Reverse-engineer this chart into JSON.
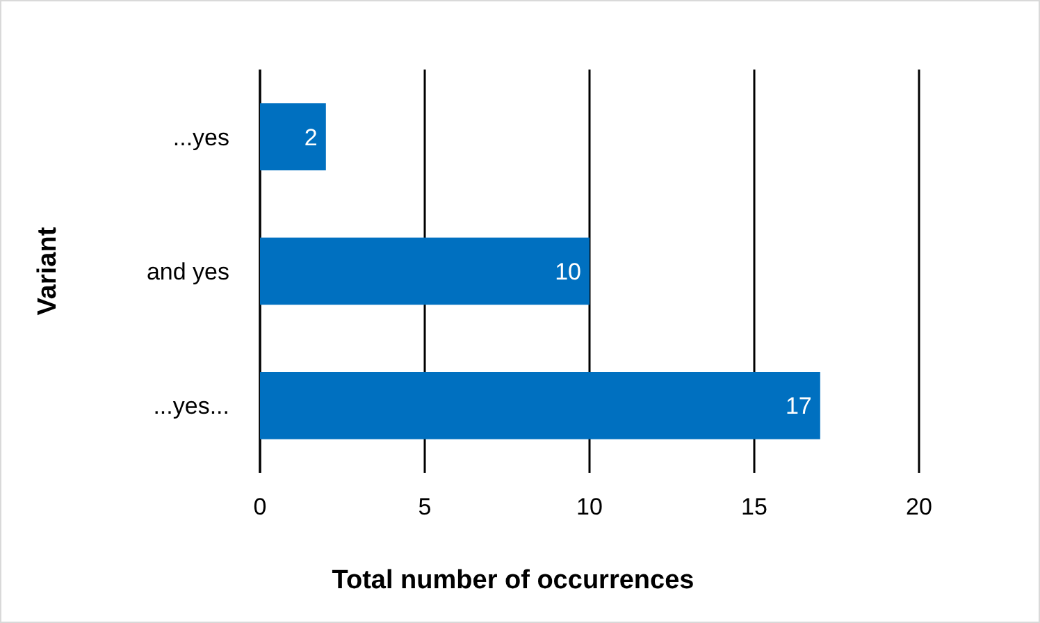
{
  "chart_data": {
    "type": "bar",
    "orientation": "horizontal",
    "xlabel": "Total number of occurrences",
    "ylabel": "Variant",
    "categories": [
      "...yes",
      "and yes",
      "...yes..."
    ],
    "values": [
      2,
      10,
      17
    ],
    "color": "#0070c0",
    "data_labels": true,
    "xlim": [
      0,
      20
    ],
    "xticks": [
      0,
      5,
      10,
      15,
      20
    ],
    "grid": "x"
  }
}
